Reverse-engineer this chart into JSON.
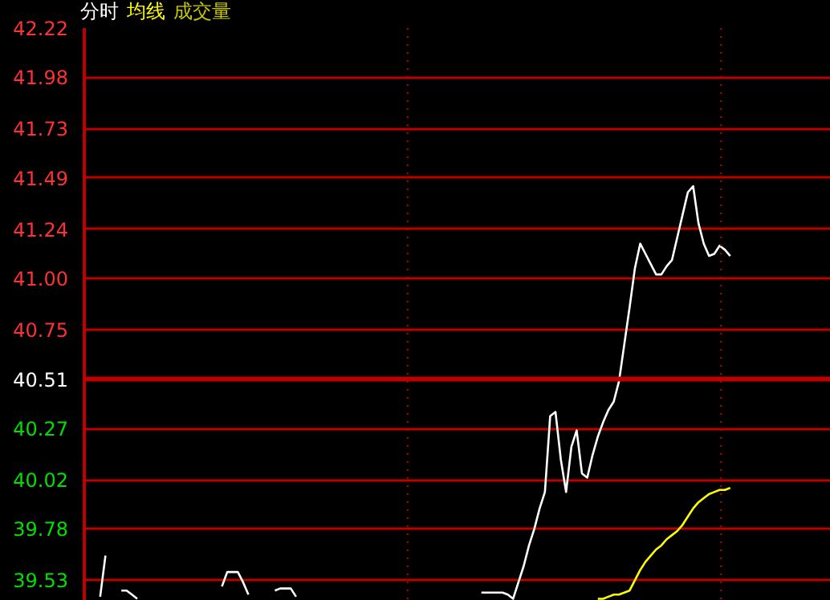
{
  "chart_data": {
    "type": "line",
    "categories": [
      null,
      null,
      null,
      null,
      null,
      null,
      null,
      null,
      null,
      null,
      null,
      null,
      null,
      null,
      null,
      null,
      null,
      null,
      null,
      null,
      null,
      null,
      null,
      null,
      null,
      null,
      null,
      null,
      null,
      null,
      null,
      null,
      null,
      null,
      null,
      null,
      null,
      null,
      null,
      null,
      null,
      null,
      null,
      null,
      null,
      null,
      null,
      null,
      null,
      null,
      null,
      null,
      null,
      null,
      null,
      null,
      null,
      null,
      null,
      null,
      null,
      null,
      null,
      null,
      null,
      null,
      null,
      null,
      null,
      null,
      null,
      null,
      null,
      null,
      null,
      null,
      null,
      null,
      null,
      null,
      null,
      null,
      null,
      null,
      null,
      null,
      null,
      null,
      null,
      null,
      null,
      null,
      null,
      null,
      null,
      null,
      null,
      null,
      null,
      null,
      null,
      null,
      null,
      null,
      null,
      null,
      null,
      null,
      null,
      null,
      null,
      null,
      null,
      null,
      null,
      null,
      null,
      null,
      null,
      null,
      null,
      null,
      null,
      null,
      null,
      null,
      null,
      null,
      null,
      null,
      null,
      null,
      null,
      null,
      null,
      null,
      null,
      null,
      null,
      null,
      null
    ],
    "series": [
      {
        "name": "分时",
        "color": "#ffffff",
        "values": [
          null,
          null,
          null,
          39.45,
          39.65,
          null,
          null,
          39.48,
          39.48,
          39.46,
          39.44,
          null,
          null,
          null,
          null,
          null,
          null,
          null,
          null,
          null,
          null,
          null,
          null,
          null,
          null,
          null,
          39.5,
          39.57,
          39.57,
          39.57,
          39.52,
          39.46,
          null,
          null,
          null,
          null,
          39.48,
          39.49,
          39.49,
          39.49,
          39.45,
          null,
          null,
          null,
          null,
          null,
          null,
          null,
          null,
          null,
          null,
          null,
          null,
          null,
          null,
          null,
          null,
          null,
          null,
          null,
          null,
          null,
          null,
          null,
          null,
          null,
          null,
          null,
          null,
          null,
          null,
          null,
          null,
          null,
          null,
          39.47,
          39.47,
          39.47,
          39.47,
          39.47,
          39.46,
          39.44,
          39.52,
          39.6,
          39.7,
          39.78,
          39.88,
          39.96,
          40.33,
          40.35,
          40.12,
          39.96,
          40.18,
          40.26,
          40.05,
          40.03,
          40.14,
          40.23,
          40.3,
          40.36,
          40.4,
          40.5,
          40.68,
          40.86,
          41.05,
          41.17,
          41.12,
          41.07,
          41.02,
          41.02,
          41.06,
          41.09,
          41.2,
          41.31,
          41.42,
          41.45,
          41.27,
          41.17,
          41.11,
          41.12,
          41.16,
          41.14,
          41.11,
          null,
          null,
          null,
          null,
          null,
          null,
          null,
          null,
          null,
          null,
          null,
          null,
          null,
          null,
          null,
          null,
          null,
          null
        ]
      },
      {
        "name": "均线",
        "color": "#ffff00",
        "values": [
          null,
          null,
          null,
          null,
          null,
          null,
          null,
          null,
          null,
          null,
          null,
          null,
          null,
          null,
          null,
          null,
          null,
          null,
          null,
          null,
          null,
          null,
          null,
          null,
          null,
          null,
          null,
          null,
          null,
          null,
          null,
          null,
          null,
          null,
          null,
          null,
          null,
          null,
          null,
          null,
          null,
          null,
          null,
          null,
          null,
          null,
          null,
          null,
          null,
          null,
          null,
          null,
          null,
          null,
          null,
          null,
          null,
          null,
          null,
          null,
          null,
          null,
          null,
          null,
          null,
          null,
          null,
          null,
          null,
          null,
          null,
          null,
          null,
          null,
          null,
          null,
          null,
          null,
          null,
          null,
          null,
          null,
          null,
          null,
          null,
          null,
          null,
          null,
          null,
          null,
          null,
          null,
          null,
          null,
          null,
          null,
          null,
          39.44,
          39.44,
          39.45,
          39.46,
          39.46,
          39.47,
          39.48,
          39.53,
          39.58,
          39.62,
          39.65,
          39.68,
          39.7,
          39.73,
          39.75,
          39.77,
          39.8,
          39.84,
          39.88,
          39.91,
          39.93,
          39.95,
          39.96,
          39.97,
          39.97,
          39.98,
          null,
          null,
          null,
          null,
          null,
          null,
          null,
          null,
          null,
          null,
          null,
          null,
          null,
          null,
          null,
          null,
          null,
          null
        ]
      }
    ],
    "annotations": [
      "成交量"
    ],
    "ylim": [
      39.43,
      42.22
    ],
    "yticks": [
      39.53,
      39.78,
      40.02,
      40.27,
      40.51,
      40.75,
      {
        "value": 41.0,
        "label": "41.00"
      },
      41.24,
      41.49,
      41.73,
      41.98,
      42.22
    ],
    "ref_lines": [
      {
        "axis": "y",
        "value": 40.51,
        "color": "#c00000"
      }
    ],
    "grid": "y",
    "tick_labels": "y",
    "marker": "none",
    "line_style": "solid"
  }
}
